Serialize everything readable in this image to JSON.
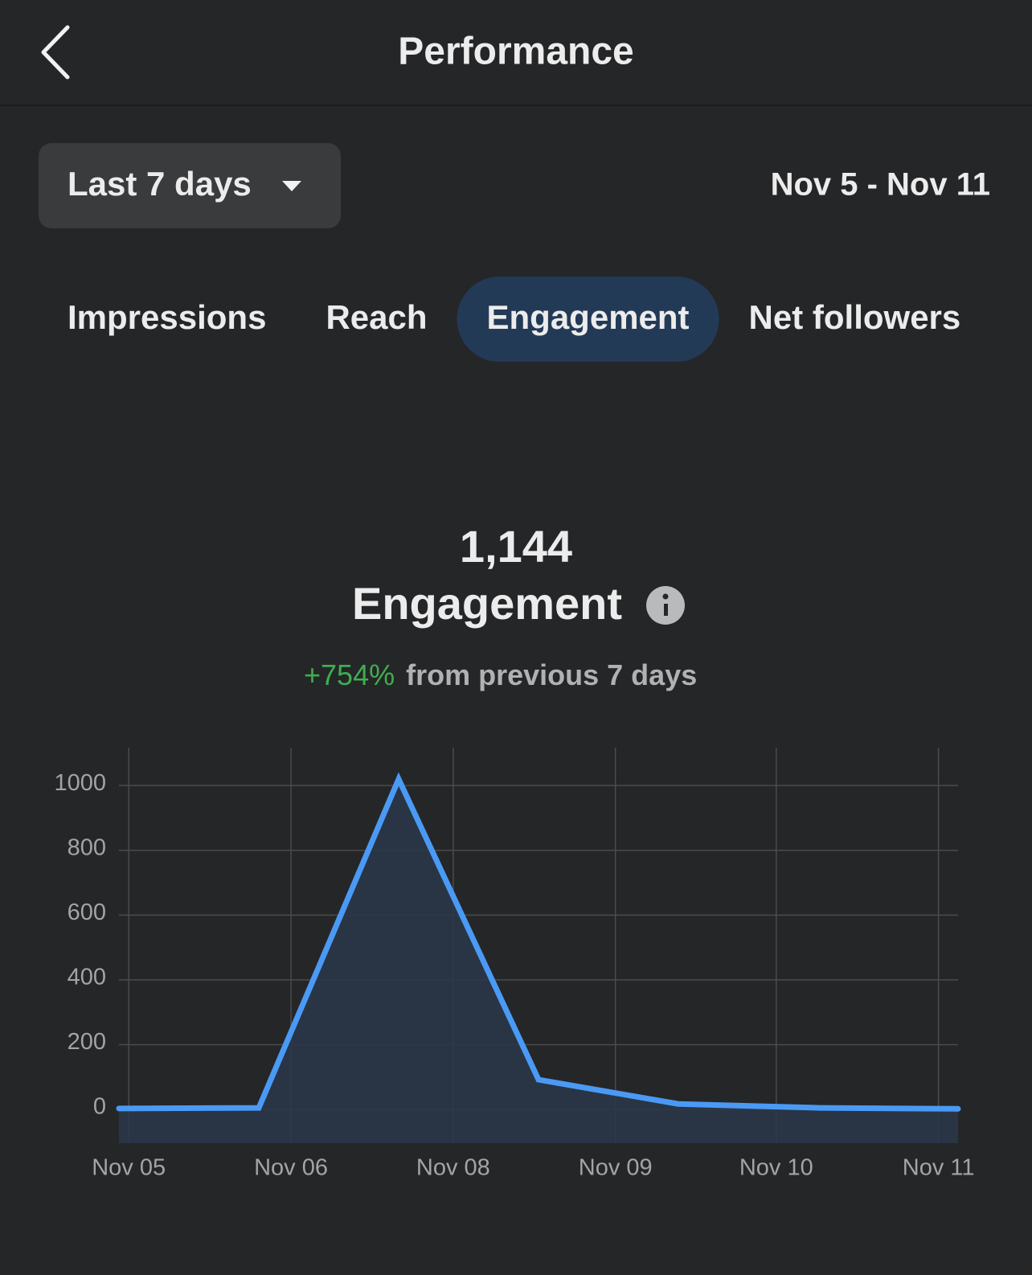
{
  "header": {
    "title": "Performance"
  },
  "date_range": {
    "selector": "Last 7 days",
    "dates": "Nov 5 - Nov 11"
  },
  "tabs": [
    "Impressions",
    "Reach",
    "Engagement",
    "Net followers"
  ],
  "active_tab": 2,
  "summary": {
    "total": "1,144",
    "metric": "Engagement",
    "change": "+754%",
    "change_text": "from previous 7 days"
  },
  "chart_data": {
    "type": "line",
    "values": [
      3,
      5,
      1020,
      92,
      17,
      5,
      2
    ],
    "color": "#4a9af5",
    "fill": "#2a3748",
    "xlim": [
      0,
      6
    ],
    "xticks": [
      {
        "value": 0.07,
        "label": "Nov 05"
      },
      {
        "value": 1.23,
        "label": "Nov 06"
      },
      {
        "value": 2.39,
        "label": "Nov 08"
      },
      {
        "value": 3.55,
        "label": "Nov 09"
      },
      {
        "value": 4.7,
        "label": "Nov 10"
      },
      {
        "value": 5.86,
        "label": "Nov 11"
      }
    ],
    "ylim": [
      -104,
      1117
    ],
    "yticks": [
      0,
      200,
      400,
      600,
      800,
      1000
    ],
    "grid": true
  }
}
